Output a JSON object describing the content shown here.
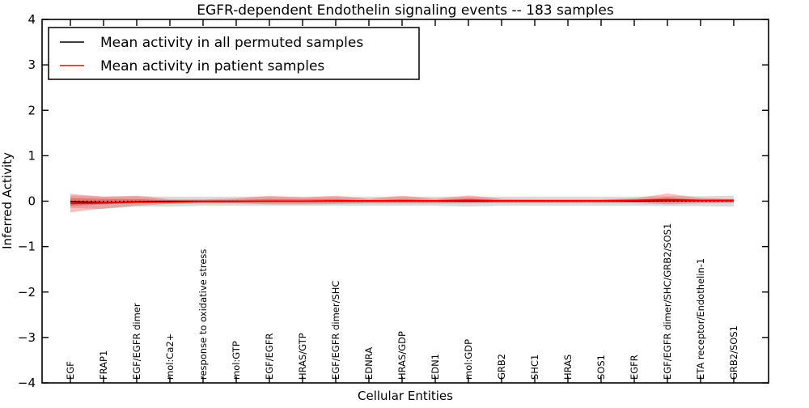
{
  "chart_data": {
    "type": "line",
    "title": "EGFR-dependent Endothelin signaling events -- 183 samples",
    "xlabel": "Cellular Entities",
    "ylabel": "Inferred Activity",
    "ylim": [
      -4,
      4
    ],
    "y_ticks": [
      -4,
      -3,
      -2,
      -1,
      0,
      1,
      2,
      3,
      4
    ],
    "y_tick_labels": [
      "−4",
      "−3",
      "−2",
      "−1",
      "0",
      "1",
      "2",
      "3",
      "4"
    ],
    "grid": false,
    "legend_position": "upper left",
    "categories": [
      "EGF",
      "FRAP1",
      "EGF/EGFR dimer",
      "mol:Ca2+",
      "response to oxidative stress",
      "mol:GTP",
      "EGF/EGFR",
      "HRAS/GTP",
      "EGF/EGFR dimer/SHC",
      "EDNRA",
      "HRAS/GDP",
      "EDN1",
      "mol:GDP",
      "GRB2",
      "SHC1",
      "HRAS",
      "SOS1",
      "EGFR",
      "EGF/EGFR dimer/SHC/GRB2/SOS1",
      "ETA receptor/Endothelin-1",
      "GRB2/SOS1"
    ],
    "legend": [
      {
        "label": "Mean activity in all permuted samples",
        "color": "#000000"
      },
      {
        "label": "Mean activity in patient samples",
        "color": "#ff0000"
      }
    ],
    "series": [
      {
        "name": "Mean activity in all permuted samples",
        "color": "#000000",
        "width": 1.3,
        "values": [
          -0.01,
          -0.03,
          -0.01,
          0,
          0,
          0,
          0,
          0,
          0,
          0,
          0,
          0,
          0,
          0,
          0,
          0,
          0,
          0,
          0.01,
          0.01,
          0.01
        ]
      },
      {
        "name": "Mean activity in patient samples",
        "color": "#ff0000",
        "width": 1.8,
        "values": [
          -0.05,
          -0.04,
          -0.02,
          -0.02,
          -0.01,
          -0.01,
          0,
          0,
          0.01,
          0.01,
          0.01,
          0.01,
          0.02,
          0.01,
          0.01,
          0.01,
          0.01,
          0.02,
          0.03,
          0.02,
          0.02
        ]
      }
    ],
    "bands": [
      {
        "name": "permuted-spread-band",
        "color": "#000000",
        "opacity": 0.14,
        "upper": [
          0.13,
          0.1,
          0.11,
          0.1,
          0.1,
          0.1,
          0.1,
          0.1,
          0.1,
          0.1,
          0.1,
          0.1,
          0.1,
          0.1,
          0.1,
          0.1,
          0.1,
          0.1,
          0.11,
          0.11,
          0.12
        ],
        "lower": [
          -0.15,
          -0.17,
          -0.12,
          -0.12,
          -0.1,
          -0.1,
          -0.1,
          -0.1,
          -0.1,
          -0.1,
          -0.1,
          -0.1,
          -0.12,
          -0.1,
          -0.1,
          -0.1,
          -0.1,
          -0.1,
          -0.11,
          -0.11,
          -0.12
        ]
      },
      {
        "name": "patient-spread-outer-band",
        "color": "#ff0000",
        "opacity": 0.25,
        "upper": [
          0.16,
          0.1,
          0.12,
          0.04,
          0.04,
          0.06,
          0.12,
          0.08,
          0.12,
          0.05,
          0.12,
          0.05,
          0.13,
          0.05,
          0.04,
          0.04,
          0.04,
          0.06,
          0.17,
          0.07,
          0.05
        ],
        "lower": [
          -0.25,
          -0.16,
          -0.1,
          -0.06,
          -0.05,
          -0.05,
          -0.07,
          -0.07,
          -0.06,
          -0.05,
          -0.05,
          -0.05,
          -0.05,
          -0.04,
          -0.04,
          -0.04,
          -0.04,
          -0.04,
          -0.07,
          -0.05,
          -0.04
        ]
      },
      {
        "name": "patient-spread-inner-band",
        "color": "#ff0000",
        "opacity": 0.3,
        "upper": [
          0.07,
          0.05,
          0.05,
          0.02,
          0.02,
          0.03,
          0.05,
          0.04,
          0.05,
          0.02,
          0.05,
          0.02,
          0.06,
          0.02,
          0.02,
          0.02,
          0.02,
          0.03,
          0.08,
          0.03,
          0.02
        ],
        "lower": [
          -0.11,
          -0.07,
          -0.05,
          -0.03,
          -0.02,
          -0.02,
          -0.03,
          -0.03,
          -0.03,
          -0.02,
          -0.02,
          -0.02,
          -0.02,
          -0.02,
          -0.02,
          -0.02,
          -0.02,
          -0.02,
          -0.03,
          -0.02,
          -0.02
        ]
      }
    ],
    "zero_line": {
      "style": "dotted",
      "color": "#000000",
      "y": 0
    }
  }
}
